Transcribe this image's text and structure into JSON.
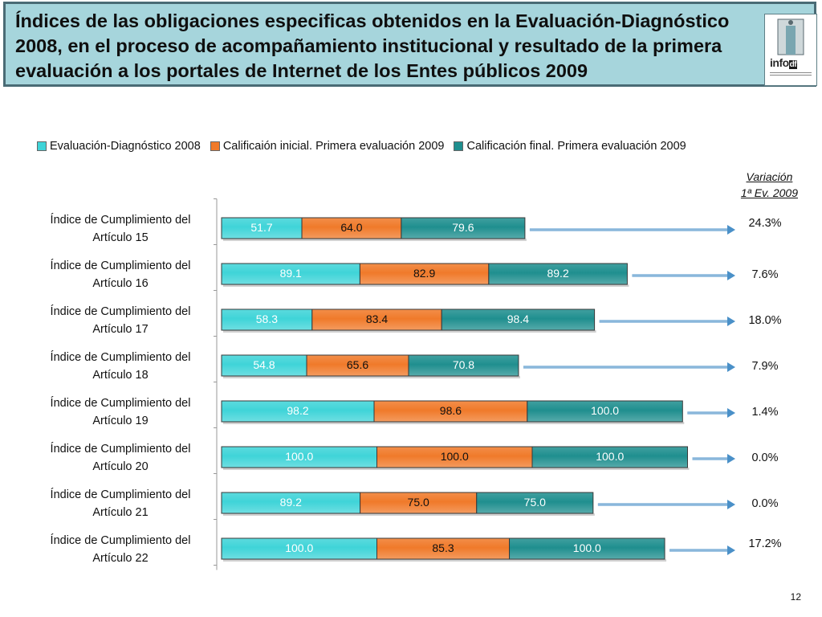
{
  "title": "Índices de las obligaciones especificas obtenidos en la Evaluación-Diagnóstico 2008, en el proceso de acompañamiento institucional y resultado de la primera evaluación a los portales de Internet de los Entes públicos 2009",
  "logo": {
    "text": "info",
    "small_text": "df"
  },
  "variation_header": {
    "line1": "Variación",
    "line2": "1ª Ev. 2009"
  },
  "page_number": "12",
  "colors": {
    "series1": "#3fd4d8",
    "series2": "#f07a2a",
    "series3": "#1f8f8f",
    "arrow": "#4a90c8"
  },
  "chart_data": {
    "type": "bar",
    "orientation": "horizontal",
    "stacked": true,
    "categories": [
      "Índice de Cumplimiento del Artículo 15",
      "Índice de Cumplimiento del Artículo 16",
      "Índice de Cumplimiento del Artículo 17",
      "Índice de Cumplimiento del Artículo 18",
      "Índice de Cumplimiento del Artículo 19",
      "Índice de Cumplimiento del Artículo 20",
      "Índice de Cumplimiento del Artículo 21",
      "Índice de Cumplimiento del Artículo 22"
    ],
    "category_lines": [
      [
        "Índice de Cumplimiento del",
        "Artículo 15"
      ],
      [
        "Índice de Cumplimiento del",
        "Artículo 16"
      ],
      [
        "Índice de Cumplimiento del",
        "Artículo 17"
      ],
      [
        "Índice de Cumplimiento del",
        "Artículo 18"
      ],
      [
        "Índice de Cumplimiento del",
        "Artículo 19"
      ],
      [
        "Índice de Cumplimiento del",
        "Artículo 20"
      ],
      [
        "Índice de Cumplimiento del",
        "Artículo 21"
      ],
      [
        "Índice de Cumplimiento del",
        "Artículo 22"
      ]
    ],
    "series": [
      {
        "name": "Evaluación-Diagnóstico 2008",
        "values": [
          51.7,
          89.1,
          58.3,
          54.8,
          98.2,
          100.0,
          89.2,
          100.0
        ],
        "labels": [
          "51.7",
          "89.1",
          "58.3",
          "54.8",
          "98.2",
          "100.0",
          "89.2",
          "100.0"
        ]
      },
      {
        "name": "Calificaión inicial. Primera evaluación 2009",
        "values": [
          64.0,
          82.9,
          83.4,
          65.6,
          98.6,
          100.0,
          75.0,
          85.3
        ],
        "labels": [
          "64.0",
          "82.9",
          "83.4",
          "65.6",
          "98.6",
          "100.0",
          "75.0",
          "85.3"
        ]
      },
      {
        "name": "Calificación final. Primera evaluación 2009",
        "values": [
          79.6,
          89.2,
          98.4,
          70.8,
          100.0,
          100.0,
          75.0,
          100.0
        ],
        "labels": [
          "79.6",
          "89.2",
          "98.4",
          "70.8",
          "100.0",
          "100.0",
          "75.0",
          "100.0"
        ]
      }
    ],
    "variation": [
      "24.3%",
      "7.6%",
      "18.0%",
      "7.9%",
      "1.4%",
      "0.0%",
      "0.0%",
      "17.2%"
    ],
    "xlim": [
      0,
      300
    ],
    "grid": false,
    "legend_position": "top"
  }
}
